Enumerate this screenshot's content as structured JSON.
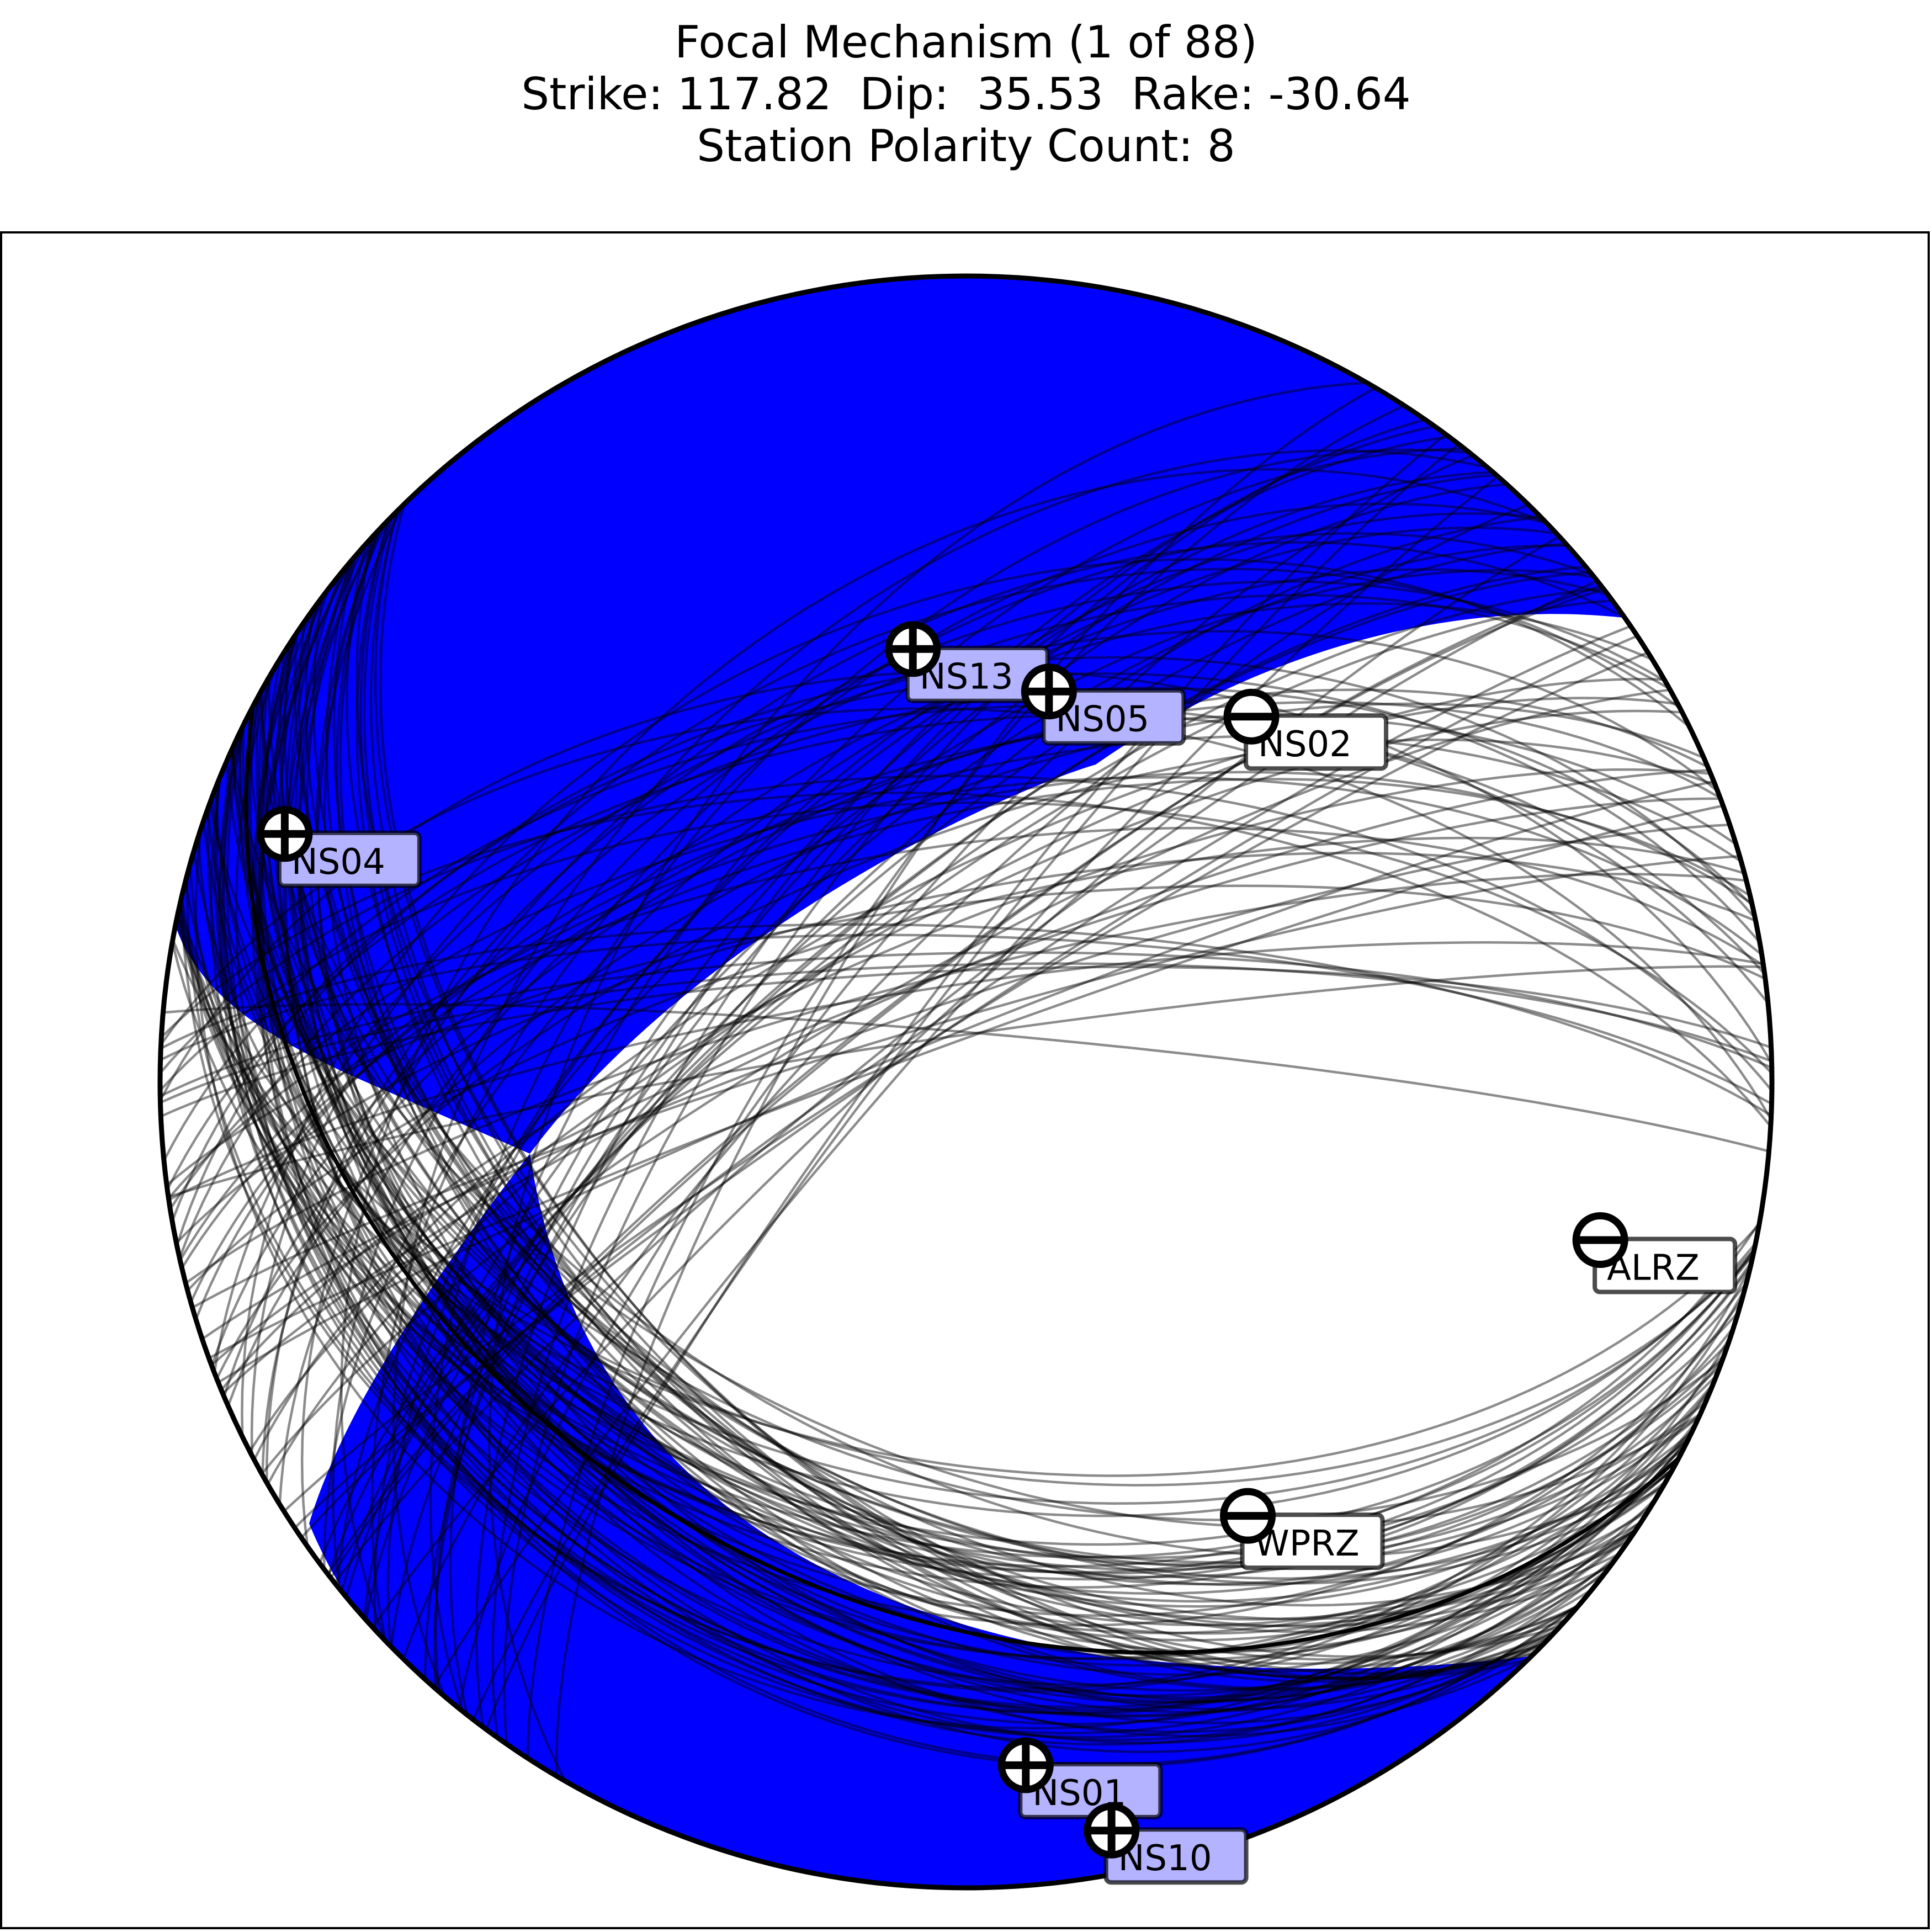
{
  "header": {
    "title": "Focal Mechanism (1 of 88)",
    "subtitle": "Strike: 117.82  Dip:  35.53  Rake: -30.64",
    "count": "Station Polarity Count: 8"
  },
  "colors": {
    "compression_fill": "#0000ff",
    "dilatation_fill": "#ffffff",
    "nodal_line": "#000000",
    "positive_label_box": "#b3b3ff",
    "negative_label_box": "#ffffff"
  },
  "chart_data": {
    "type": "focal_mechanism_beachball",
    "projection": "lower-hemisphere stereonet",
    "title": "Focal Mechanism (1 of 88)\nStrike: 117.82  Dip:  35.53  Rake: -30.64\nStation Polarity Count: 8",
    "mechanism_index": 1,
    "mechanism_total": 88,
    "preferred": {
      "strike": 117.82,
      "dip": 35.53,
      "rake": -30.64
    },
    "station_polarity_count": 8,
    "nodal_plane_family_a": {
      "strike_range": [
        100,
        136
      ],
      "dip_range": [
        22,
        52
      ]
    },
    "nodal_plane_family_b": {
      "strike_range": [
        205,
        275
      ],
      "dip_range": [
        40,
        86
      ]
    },
    "stations": [
      {
        "name": "NS13",
        "polarity": "+",
        "azimuth": 353,
        "takeoff": 45
      },
      {
        "name": "NS05",
        "polarity": "+",
        "azimuth": 12,
        "takeoff": 41
      },
      {
        "name": "NS02",
        "polarity": "-",
        "azimuth": 38,
        "takeoff": 48
      },
      {
        "name": "NS04",
        "polarity": "+",
        "azimuth": 290,
        "takeoff": 79
      },
      {
        "name": "ALRZ",
        "polarity": "-",
        "azimuth": 104,
        "takeoff": 70
      },
      {
        "name": "WPRZ",
        "polarity": "-",
        "azimuth": 147,
        "takeoff": 54
      },
      {
        "name": "NS01",
        "polarity": "+",
        "azimuth": 175,
        "takeoff": 74
      },
      {
        "name": "NS10",
        "polarity": "+",
        "azimuth": 169,
        "takeoff": 84
      }
    ]
  }
}
